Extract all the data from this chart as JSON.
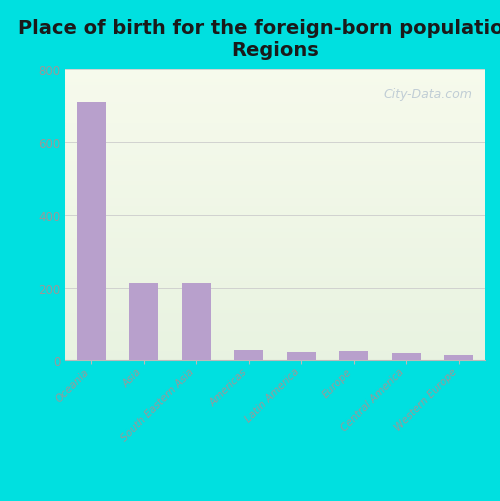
{
  "title": "Place of birth for the foreign-born population -\nRegions",
  "categories": [
    "Oceania",
    "Asia",
    "South Eastern Asia",
    "Americas",
    "Latin America",
    "Europe",
    "Central America",
    "Western Europe"
  ],
  "values": [
    710,
    213,
    213,
    28,
    22,
    25,
    20,
    14
  ],
  "bar_color": "#b8a0cc",
  "background_outer": "#00e0e0",
  "title_fontsize": 14,
  "tick_label_color": "#999999",
  "axis_label_color": "#999999",
  "ylim": [
    0,
    800
  ],
  "yticks": [
    0,
    200,
    400,
    600,
    800
  ],
  "watermark": "City-Data.com"
}
